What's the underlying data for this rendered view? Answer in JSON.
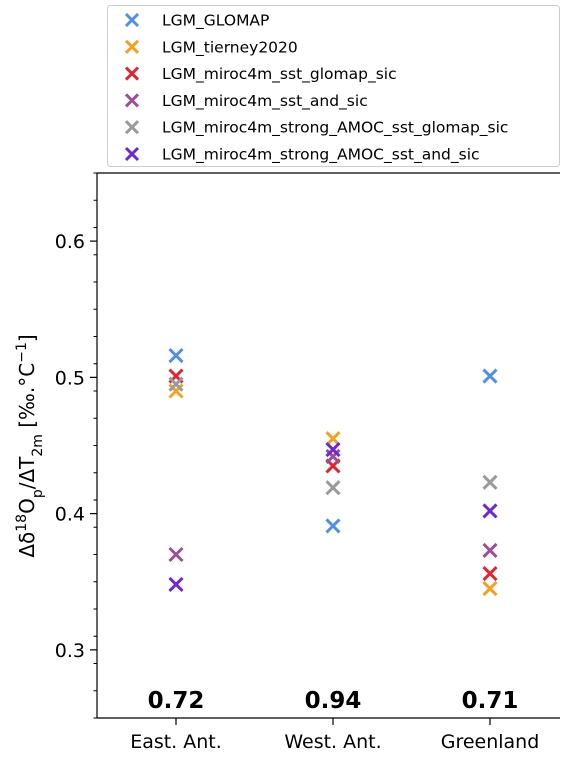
{
  "chart_data": {
    "type": "scatter",
    "categories": [
      "East. Ant.",
      "West. Ant.",
      "Greenland"
    ],
    "ylabel": {
      "prefix": "Δδ",
      "sup1": "18",
      "mid1": "O",
      "sub1": "p",
      "mid2": "/ΔT",
      "sub2": "2m",
      "unit": " [‰.°C",
      "sup2": "−1",
      "end": "]"
    },
    "ylim": [
      0.25,
      0.65
    ],
    "yticks": [
      {
        "value": 0.3,
        "label": "0.3"
      },
      {
        "value": 0.4,
        "label": "0.4"
      },
      {
        "value": 0.5,
        "label": "0.5"
      },
      {
        "value": 0.6,
        "label": "0.6"
      }
    ],
    "marker": "x",
    "legend_position": "top",
    "series": [
      {
        "name": "LGM_GLOMAP",
        "color": "#4f8fe8",
        "values": [
          0.516,
          0.391,
          0.501
        ]
      },
      {
        "name": "LGM_tierney2020",
        "color": "#f5a020",
        "values": [
          0.49,
          0.455,
          0.345
        ]
      },
      {
        "name": "LGM_miroc4m_sst_glomap_sic",
        "color": "#e5232f",
        "values": [
          0.501,
          0.435,
          0.356
        ]
      },
      {
        "name": "LGM_miroc4m_sst_and_sic",
        "color": "#9b4f96",
        "values": [
          0.37,
          0.442,
          0.373
        ]
      },
      {
        "name": "LGM_miroc4m_strong_AMOC_sst_glomap_sic",
        "color": "#9a9a9a",
        "values": [
          0.495,
          0.419,
          0.423
        ]
      },
      {
        "name": "LGM_miroc4m_strong_AMOC_sst_and_sic",
        "color": "#6f27d4",
        "values": [
          0.348,
          0.447,
          0.402
        ]
      }
    ],
    "annotations": [
      "0.72",
      "0.94",
      "0.71"
    ]
  }
}
